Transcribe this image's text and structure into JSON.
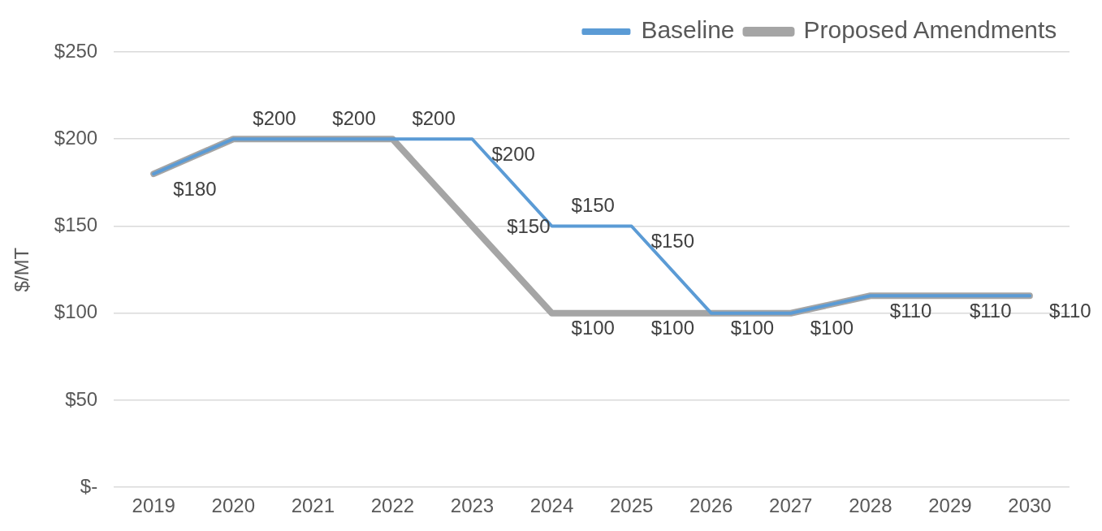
{
  "chart_data": {
    "type": "line",
    "ylabel": "$/MT",
    "categories": [
      "2019",
      "2020",
      "2021",
      "2022",
      "2023",
      "2024",
      "2025",
      "2026",
      "2027",
      "2028",
      "2029",
      "2030"
    ],
    "series": [
      {
        "name": "Baseline",
        "color": "#5b9bd5",
        "values": [
          180,
          200,
          200,
          200,
          200,
          150,
          150,
          100,
          100,
          110,
          110,
          110
        ],
        "value_labels": [
          null,
          null,
          null,
          null,
          "$200",
          "$150",
          "$150",
          null,
          null,
          null,
          null,
          null
        ]
      },
      {
        "name": "Proposed Amendments",
        "color": "#a5a5a5",
        "values": [
          180,
          200,
          200,
          200,
          150,
          100,
          100,
          100,
          100,
          110,
          110,
          110
        ],
        "value_labels": [
          "$180",
          "$200",
          "$200",
          "$200",
          null,
          "$100",
          "$100",
          "$100",
          "$100",
          "$110",
          "$110",
          "$110"
        ]
      }
    ],
    "annotations": [
      {
        "text": "$150",
        "x": "2024",
        "y": 150
      }
    ],
    "ylim": [
      0,
      250
    ],
    "yticks": [
      {
        "value": 0,
        "label": "$-"
      },
      {
        "value": 50,
        "label": "$50"
      },
      {
        "value": 100,
        "label": "$100"
      },
      {
        "value": 150,
        "label": "$150"
      },
      {
        "value": 200,
        "label": "$200"
      },
      {
        "value": 250,
        "label": "$250"
      }
    ],
    "grid": "y",
    "legend": "top right",
    "marker": "none",
    "line_style": "solid"
  }
}
